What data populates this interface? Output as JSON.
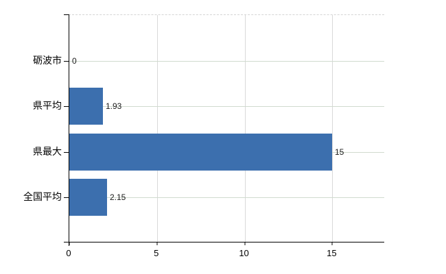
{
  "chart": {
    "title": "",
    "bar_color": "#3c6fae",
    "axis_color": "#000000",
    "vertical_grid_color": "#d9d9d9",
    "horizontal_grid_color": "#d0dace"
  },
  "chart_data": {
    "type": "bar",
    "orientation": "horizontal",
    "title": "",
    "xlabel": "",
    "ylabel": "",
    "categories": [
      "砺波市",
      "県平均",
      "県最大",
      "全国平均"
    ],
    "values": [
      0,
      1.93,
      15,
      2.15
    ],
    "value_labels": [
      "0",
      "1.93",
      "15",
      "2.15"
    ],
    "x_ticks": [
      "0",
      "5",
      "10",
      "15"
    ],
    "x_tick_values": [
      0,
      5,
      10,
      15
    ],
    "xlim": [
      0,
      18
    ],
    "grid": "on",
    "legend": "none"
  }
}
